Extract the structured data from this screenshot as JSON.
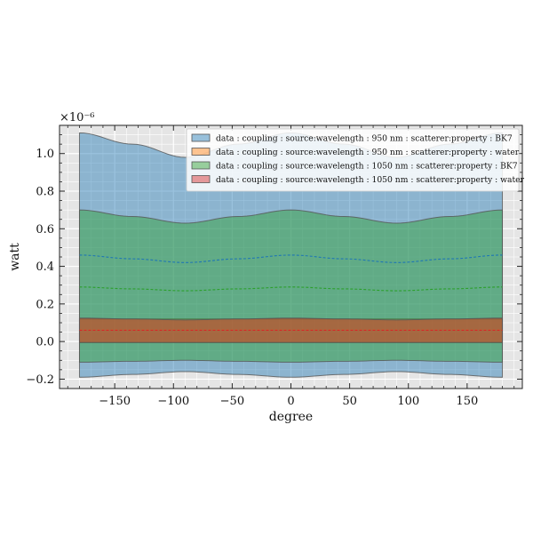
{
  "chart_data": {
    "type": "area",
    "title": "",
    "xlabel": "degree",
    "ylabel": "watt",
    "y_scale_label": "×10⁻⁶",
    "xlim": [
      -197,
      197
    ],
    "ylim": [
      -0.25,
      1.15
    ],
    "x_ticks": [
      -150,
      -100,
      -50,
      0,
      50,
      100,
      150
    ],
    "y_ticks": [
      -0.2,
      0.0,
      0.2,
      0.4,
      0.6,
      0.8,
      1.0
    ],
    "x_tick_labels": [
      "−150",
      "−100",
      "−50",
      "0",
      "50",
      "100",
      "150"
    ],
    "y_tick_labels": [
      "−0.2",
      "0.0",
      "0.2",
      "0.4",
      "0.6",
      "0.8",
      "1.0"
    ],
    "grid": true,
    "legend_position": "top-right",
    "x": [
      -180,
      -135,
      -90,
      -45,
      0,
      45,
      90,
      135,
      180
    ],
    "series": [
      {
        "name": "data : coupling : source:wavelength : 950 nm : scatterer:property : BK7",
        "color": "#1f77b4",
        "mean": [
          0.46,
          0.44,
          0.42,
          0.44,
          0.46,
          0.44,
          0.42,
          0.44,
          0.46
        ],
        "upper": [
          1.11,
          1.05,
          0.98,
          1.05,
          1.11,
          1.05,
          0.98,
          1.05,
          1.11
        ],
        "lower": [
          -0.19,
          -0.175,
          -0.16,
          -0.175,
          -0.19,
          -0.175,
          -0.16,
          -0.175,
          -0.19
        ]
      },
      {
        "name": "data : coupling : source:wavelength : 950 nm : scatterer:property : water",
        "color": "#ff7f0e",
        "mean": [
          0.06,
          0.06,
          0.06,
          0.06,
          0.06,
          0.06,
          0.06,
          0.06,
          0.06
        ],
        "upper": [
          0.12,
          0.12,
          0.12,
          0.12,
          0.12,
          0.12,
          0.12,
          0.12,
          0.12
        ],
        "lower": [
          -0.005,
          -0.005,
          -0.005,
          -0.005,
          -0.005,
          -0.005,
          -0.005,
          -0.005,
          -0.005
        ]
      },
      {
        "name": "data : coupling : source:wavelength : 1050 nm : scatterer:property : BK7",
        "color": "#2ca02c",
        "mean": [
          0.29,
          0.28,
          0.27,
          0.28,
          0.29,
          0.28,
          0.27,
          0.28,
          0.29
        ],
        "upper": [
          0.7,
          0.665,
          0.63,
          0.665,
          0.7,
          0.665,
          0.63,
          0.665,
          0.7
        ],
        "lower": [
          -0.11,
          -0.105,
          -0.1,
          -0.105,
          -0.11,
          -0.105,
          -0.1,
          -0.105,
          -0.11
        ]
      },
      {
        "name": "data : coupling : source:wavelength : 1050 nm : scatterer:property : water",
        "color": "#d62728",
        "mean": [
          0.06,
          0.06,
          0.06,
          0.06,
          0.06,
          0.06,
          0.06,
          0.06,
          0.06
        ],
        "upper": [
          0.125,
          0.12,
          0.115,
          0.12,
          0.125,
          0.12,
          0.115,
          0.12,
          0.125
        ],
        "lower": [
          -0.005,
          -0.005,
          -0.005,
          -0.005,
          -0.005,
          -0.005,
          -0.005,
          -0.005,
          -0.005
        ]
      }
    ]
  }
}
